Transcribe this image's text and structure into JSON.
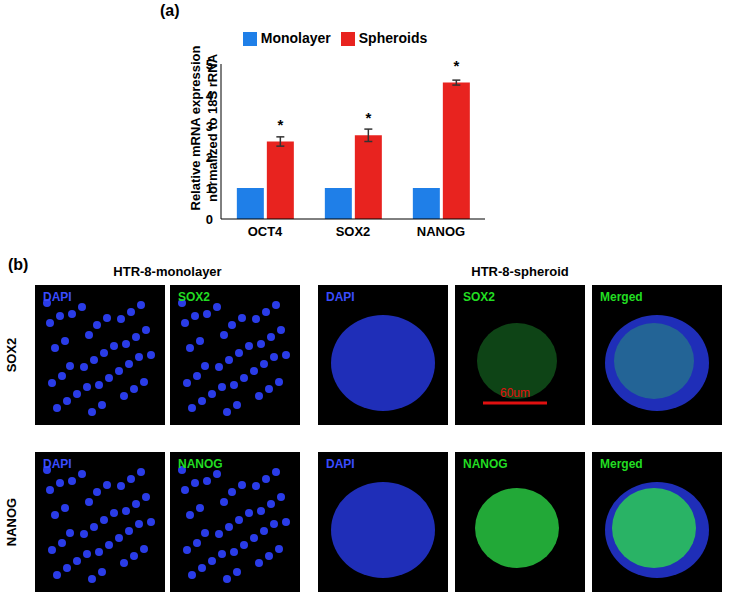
{
  "chart_data": {
    "type": "bar",
    "panel_label": "(a)",
    "y_label": "Relative mRNA expression normalized to 18S rRNA",
    "categories": [
      "OCT4",
      "SOX2",
      "NANOG"
    ],
    "series": [
      {
        "name": "Monolayer",
        "color": "#1f7fe8",
        "values": [
          1,
          1,
          1
        ]
      },
      {
        "name": "Spheroids",
        "color": "#e8231f",
        "values": [
          2.5,
          2.7,
          4.4
        ],
        "errors": [
          0.15,
          0.2,
          0.08
        ],
        "significance": [
          "*",
          "*",
          "*"
        ]
      }
    ],
    "ylim": [
      0,
      5
    ],
    "yticks": [
      0,
      1,
      2,
      3,
      4,
      5
    ],
    "grid": false,
    "legend": "top"
  },
  "panel_b": {
    "label": "(b)",
    "columns": [
      "HTR-8-monolayer",
      "HTR-8-spheroid"
    ],
    "rows": [
      {
        "marker": "SOX2",
        "monolayer": [
          "DAPI",
          "SOX2"
        ],
        "spheroid": [
          "DAPI",
          "SOX2",
          "Merged"
        ]
      },
      {
        "marker": "NANOG",
        "monolayer": [
          "DAPI",
          "NANOG"
        ],
        "spheroid": [
          "DAPI",
          "NANOG",
          "Merged"
        ]
      }
    ],
    "scale_bar": "60um"
  }
}
